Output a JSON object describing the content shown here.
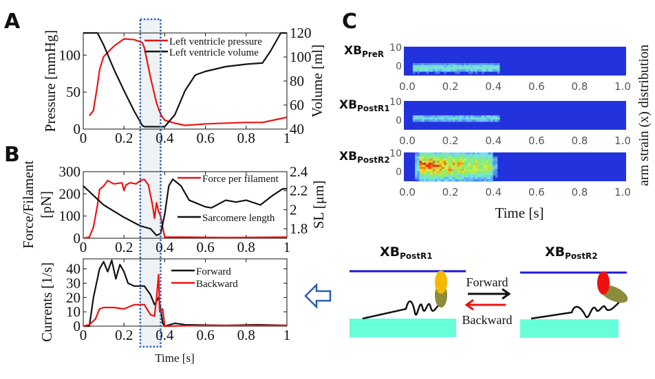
{
  "panels": {
    "a": "A",
    "b": "B",
    "c": "C"
  },
  "colors": {
    "red": "#ee1111",
    "black": "#111111",
    "blue_dotted": "#2a5cb0",
    "shade": "#eef2f4",
    "heatmap_bg": "#2233dd",
    "thin_filament": "#1a1adb",
    "thick_filament": "#66ffd9",
    "head_prer1": "#f5b800",
    "head_postr2": "#ee1111",
    "neck": "#8b8b3a"
  },
  "chart_data": [
    {
      "id": "A",
      "type": "line",
      "xlim": [
        0,
        1
      ],
      "ylim": [
        0,
        130
      ],
      "y2lim": [
        40,
        120
      ],
      "xticks": [
        "0",
        "0.2",
        "0.4",
        "0.6",
        "0.8",
        "1"
      ],
      "yticks": [
        "0",
        "50",
        "100"
      ],
      "y2ticks": [
        "40",
        "60",
        "80",
        "100",
        "120"
      ],
      "ylabel": "Pressure [mmHg]",
      "y2label": "Volume [ml]",
      "legend_position": "top-right",
      "highlight_x": [
        0.28,
        0.38
      ],
      "series": [
        {
          "name": "Left ventricle pressure",
          "axis": "y",
          "color": "#ee1111",
          "x": [
            0.03,
            0.05,
            0.07,
            0.08,
            0.1,
            0.15,
            0.2,
            0.25,
            0.29,
            0.3,
            0.33,
            0.36,
            0.38,
            0.4,
            0.45,
            0.5,
            0.6,
            0.8,
            0.88,
            0.95,
            1.0
          ],
          "y": [
            18,
            25,
            60,
            80,
            98,
            112,
            122,
            121,
            117,
            110,
            70,
            35,
            20,
            12,
            8,
            5,
            7,
            9,
            9,
            13,
            16
          ]
        },
        {
          "name": "Left ventricle volume",
          "axis": "y2",
          "color": "#111111",
          "x": [
            0.0,
            0.07,
            0.1,
            0.15,
            0.2,
            0.25,
            0.29,
            0.3,
            0.4,
            0.45,
            0.5,
            0.55,
            0.6,
            0.7,
            0.8,
            0.88,
            0.92,
            0.97,
            1.0
          ],
          "y": [
            120,
            120,
            110,
            90,
            72,
            55,
            43,
            42,
            42,
            52,
            72,
            85,
            88,
            92,
            94,
            95,
            105,
            120,
            120
          ]
        }
      ]
    },
    {
      "id": "B1",
      "type": "line",
      "xlim": [
        0,
        1
      ],
      "ylim": [
        0,
        300
      ],
      "y2lim": [
        1.7,
        2.4
      ],
      "xticks": [
        "0",
        "0.2",
        "0.4",
        "0.6",
        "0.8",
        "1"
      ],
      "yticks": [
        "0",
        "100",
        "200",
        "300"
      ],
      "y2ticks": [
        "1.8",
        "2",
        "2.2",
        "2.4"
      ],
      "ylabel_line1": "Force/Filament",
      "ylabel_line2": "[pN]",
      "y2label": "SL [μm]",
      "highlight_x": [
        0.28,
        0.38
      ],
      "series": [
        {
          "name": "Force per filament",
          "axis": "y",
          "color": "#ee1111",
          "x": [
            0,
            0.03,
            0.05,
            0.07,
            0.08,
            0.1,
            0.12,
            0.15,
            0.19,
            0.2,
            0.21,
            0.23,
            0.26,
            0.28,
            0.3,
            0.32,
            0.34,
            0.35,
            0.36,
            0.37,
            0.38,
            0.39,
            0.4,
            0.5,
            0.7,
            1.0
          ],
          "y": [
            0,
            5,
            50,
            150,
            220,
            235,
            260,
            245,
            250,
            215,
            240,
            250,
            245,
            260,
            265,
            240,
            150,
            90,
            160,
            120,
            100,
            50,
            5,
            5,
            3,
            5
          ]
        },
        {
          "name": "Sarcomere length",
          "axis": "y2",
          "color": "#111111",
          "x": [
            0,
            0.05,
            0.1,
            0.2,
            0.28,
            0.33,
            0.36,
            0.38,
            0.4,
            0.42,
            0.44,
            0.48,
            0.52,
            0.6,
            0.63,
            0.7,
            0.75,
            0.8,
            0.87,
            0.93,
            0.98,
            1.0
          ],
          "y": [
            2.25,
            2.15,
            2.05,
            1.92,
            1.83,
            1.8,
            1.73,
            1.75,
            1.95,
            2.25,
            2.32,
            2.25,
            2.1,
            2.03,
            2.02,
            2.1,
            2.08,
            2.1,
            2.05,
            2.15,
            2.22,
            2.22
          ]
        }
      ]
    },
    {
      "id": "B2",
      "type": "line",
      "xlim": [
        0,
        1
      ],
      "ylim": [
        0,
        47
      ],
      "xticks": [
        "0",
        "0.2",
        "0.4",
        "0.6",
        "0.8",
        "1"
      ],
      "yticks": [
        "0",
        "10",
        "20",
        "30",
        "40"
      ],
      "ylabel": "Currents [1/s]",
      "xlabel": "Time  [s]",
      "highlight_x": [
        0.28,
        0.38
      ],
      "series": [
        {
          "name": "Forward",
          "color": "#111111",
          "x": [
            0,
            0.03,
            0.05,
            0.08,
            0.1,
            0.12,
            0.14,
            0.16,
            0.18,
            0.2,
            0.22,
            0.25,
            0.3,
            0.33,
            0.35,
            0.37,
            0.38,
            0.39,
            0.4,
            0.45,
            0.5,
            0.7,
            0.85,
            1.0
          ],
          "y": [
            0,
            0,
            20,
            40,
            45,
            38,
            46,
            33,
            43,
            38,
            30,
            28,
            28,
            22,
            15,
            20,
            12,
            2,
            0,
            2,
            1,
            0.5,
            1,
            0.5
          ]
        },
        {
          "name": "Backward",
          "color": "#ee1111",
          "x": [
            0,
            0.03,
            0.06,
            0.08,
            0.1,
            0.15,
            0.2,
            0.25,
            0.3,
            0.33,
            0.35,
            0.36,
            0.37,
            0.375,
            0.39,
            0.4,
            0.6,
            0.8,
            1.0
          ],
          "y": [
            0,
            1,
            5,
            12,
            13,
            13,
            12,
            15,
            15,
            8,
            7,
            20,
            36,
            10,
            12,
            0,
            0.5,
            0.5,
            0.5
          ]
        }
      ]
    },
    {
      "id": "C",
      "type": "heatmap",
      "xlim": [
        0,
        1
      ],
      "ylim": [
        -5,
        10
      ],
      "xticks": [
        "0.0",
        "0.2",
        "0.4",
        "0.6",
        "0.8",
        "1.0"
      ],
      "yticks": [
        "0",
        "10"
      ],
      "xlabel": "Time  [s]",
      "ylabel": "arm strain (x) distribution",
      "rows": [
        {
          "label": "XB",
          "sub": "PreR",
          "active_time": [
            0.04,
            0.43
          ],
          "strain_center": -1,
          "strain_spread": 1.5,
          "peak": 0.45
        },
        {
          "label": "XB",
          "sub": "PostR1",
          "active_time": [
            0.04,
            0.43
          ],
          "strain_center": 1,
          "strain_spread": 1.2,
          "peak": 0.4
        },
        {
          "label": "XB",
          "sub": "PostR2",
          "active_time": [
            0.05,
            0.42
          ],
          "strain_center": 3,
          "strain_spread": 5,
          "peak": 1.0
        }
      ]
    }
  ],
  "diagram": {
    "left_state": {
      "label": "XB",
      "sub": "PostR1"
    },
    "right_state": {
      "label": "XB",
      "sub": "PostR2"
    },
    "forward": "Forward",
    "backward": "Backward"
  }
}
